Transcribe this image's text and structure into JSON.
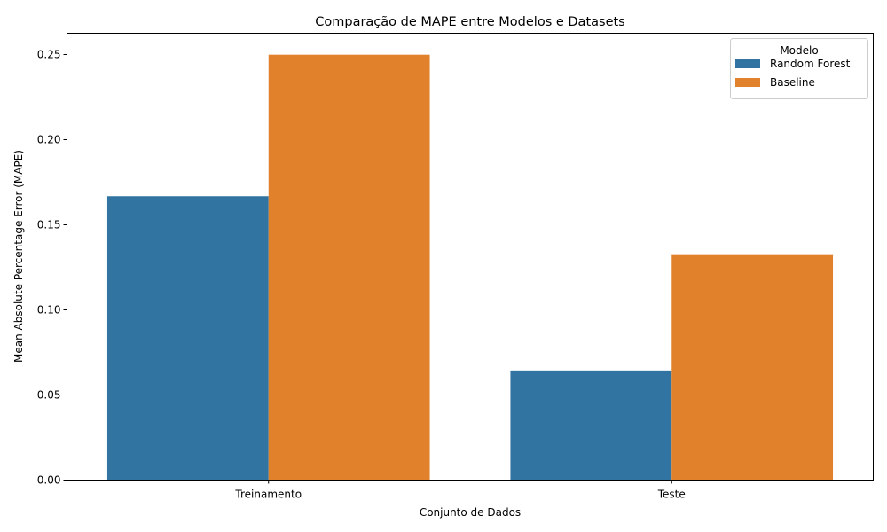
{
  "chart_data": {
    "type": "bar",
    "title": "Comparação de MAPE entre Modelos e Datasets",
    "xlabel": "Conjunto de Dados",
    "ylabel": "Mean Absolute Percentage Error (MAPE)",
    "categories": [
      "Treinamento",
      "Teste"
    ],
    "series": [
      {
        "name": "Random Forest",
        "values": [
          0.1668,
          0.0644
        ],
        "color": "#3274a1"
      },
      {
        "name": "Baseline",
        "values": [
          0.2499,
          0.1322
        ],
        "color": "#e1812c"
      }
    ],
    "ylim": [
      0,
      0.2625
    ],
    "yticks": [
      0.0,
      0.05,
      0.1,
      0.15,
      0.2,
      0.25
    ],
    "ytick_labels": [
      "0.00",
      "0.05",
      "0.10",
      "0.15",
      "0.20",
      "0.25"
    ],
    "grid": false,
    "legend": {
      "title": "Modelo",
      "placement": "top-right"
    }
  }
}
